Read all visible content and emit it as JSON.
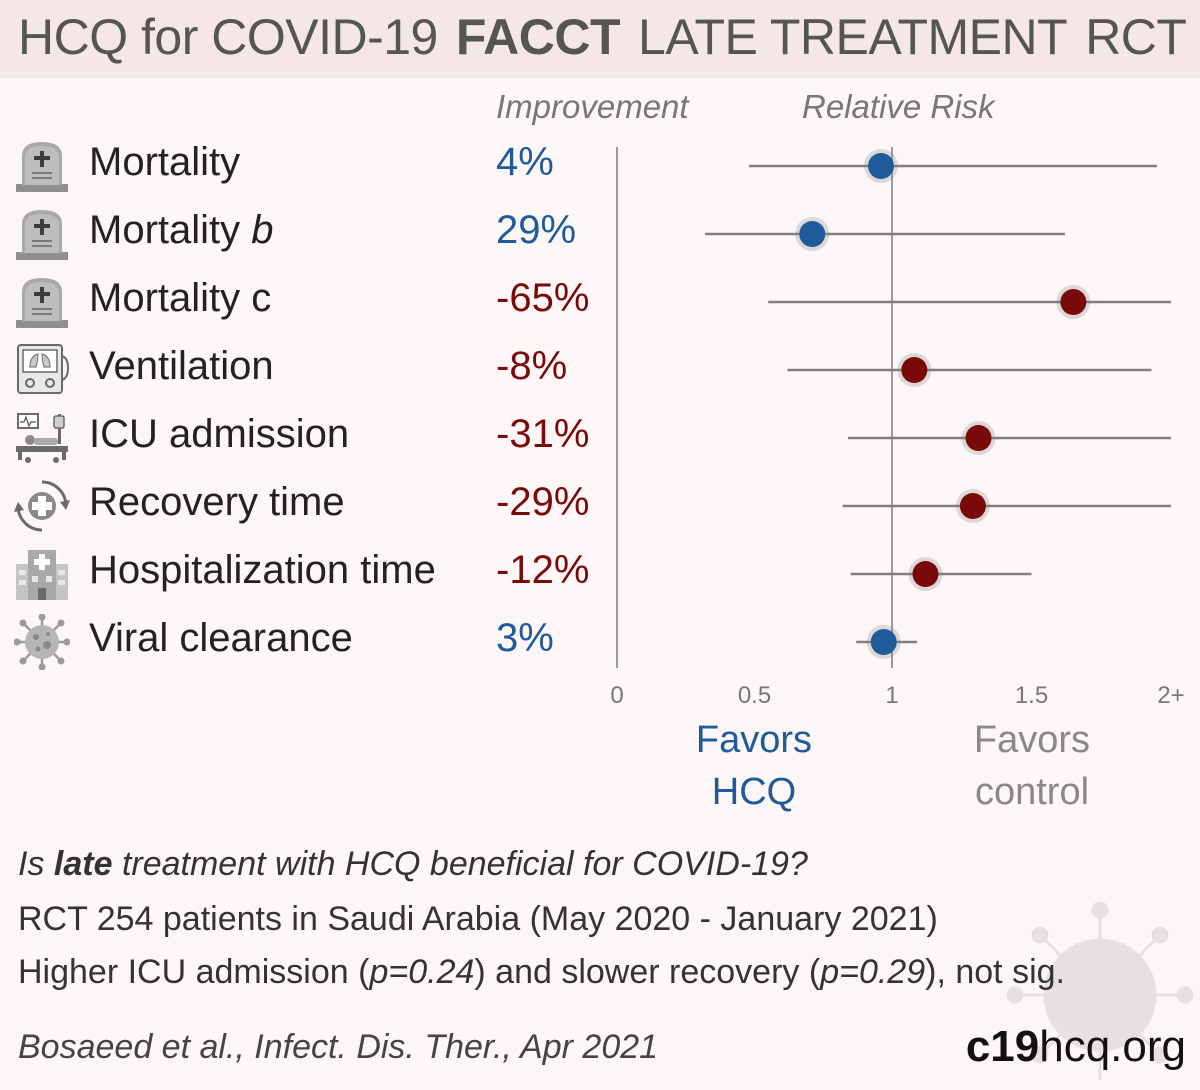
{
  "title": {
    "part1": "HCQ for COVID-19",
    "part2": "FACCT",
    "part3": "LATE TREATMENT",
    "part4": "RCT"
  },
  "headers": {
    "improvement": "Improvement",
    "relative_risk": "Relative Risk"
  },
  "colors": {
    "favors_hcq": "#1f5a9a",
    "favors_control": "#7a0a0a",
    "ci_line": "#7f7f7f",
    "title_bg": "#f5e7e6",
    "background": "#fcf6f6"
  },
  "outcomes": [
    {
      "label": "Mortality",
      "label_suffix": "",
      "improvement": "4%",
      "icon": "tombstone-icon"
    },
    {
      "label": "Mortality",
      "label_suffix": "b",
      "improvement": "29%",
      "icon": "tombstone-icon"
    },
    {
      "label": "Mortality c",
      "label_suffix": "",
      "improvement": "-65%",
      "icon": "tombstone-icon"
    },
    {
      "label": "Ventilation",
      "label_suffix": "",
      "improvement": "-8%",
      "icon": "ventilator-icon"
    },
    {
      "label": "ICU admission",
      "label_suffix": "",
      "improvement": "-31%",
      "icon": "icu-bed-icon"
    },
    {
      "label": "Recovery time",
      "label_suffix": "",
      "improvement": "-29%",
      "icon": "recovery-icon"
    },
    {
      "label": "Hospitalization time",
      "label_suffix": "",
      "improvement": "-12%",
      "icon": "hospital-icon"
    },
    {
      "label": "Viral clearance",
      "label_suffix": "",
      "improvement": "3%",
      "icon": "virus-icon"
    }
  ],
  "chart_data": {
    "type": "scatter",
    "subtype": "forest-plot",
    "x_ticks": [
      "0",
      "0.5",
      "1",
      "1.5",
      "2+"
    ],
    "xlim": [
      0,
      2
    ],
    "reference_line": 1,
    "points": [
      {
        "rr": 0.96,
        "ci_low": 0.48,
        "ci_high": 1.95,
        "favors": "hcq"
      },
      {
        "rr": 0.71,
        "ci_low": 0.32,
        "ci_high": 1.62,
        "favors": "hcq"
      },
      {
        "rr": 1.65,
        "ci_low": 0.55,
        "ci_high": 2.0,
        "favors": "control"
      },
      {
        "rr": 1.08,
        "ci_low": 0.62,
        "ci_high": 1.93,
        "favors": "control"
      },
      {
        "rr": 1.31,
        "ci_low": 0.84,
        "ci_high": 2.0,
        "favors": "control"
      },
      {
        "rr": 1.29,
        "ci_low": 0.82,
        "ci_high": 2.0,
        "favors": "control"
      },
      {
        "rr": 1.12,
        "ci_low": 0.85,
        "ci_high": 1.5,
        "favors": "control"
      },
      {
        "rr": 0.97,
        "ci_low": 0.87,
        "ci_high": 1.09,
        "favors": "hcq"
      }
    ]
  },
  "favors": {
    "hcq_line1": "Favors",
    "hcq_line2": "HCQ",
    "control_line1": "Favors",
    "control_line2": "control"
  },
  "footer": {
    "question_pre": "Is ",
    "question_bold": "late",
    "question_post": " treatment with HCQ beneficial for COVID-19?",
    "study": "RCT 254 patients in Saudi Arabia (May 2020 - January 2021)",
    "result_a": "Higher ICU admission (",
    "result_p1": "p=0.24",
    "result_b": ") and slower recovery (",
    "result_p2": "p=0.29",
    "result_c": "), not sig.",
    "citation": "Bosaeed et al., Infect. Dis. Ther., Apr 2021",
    "site_bold": "c19",
    "site_rest": "hcq.org"
  }
}
